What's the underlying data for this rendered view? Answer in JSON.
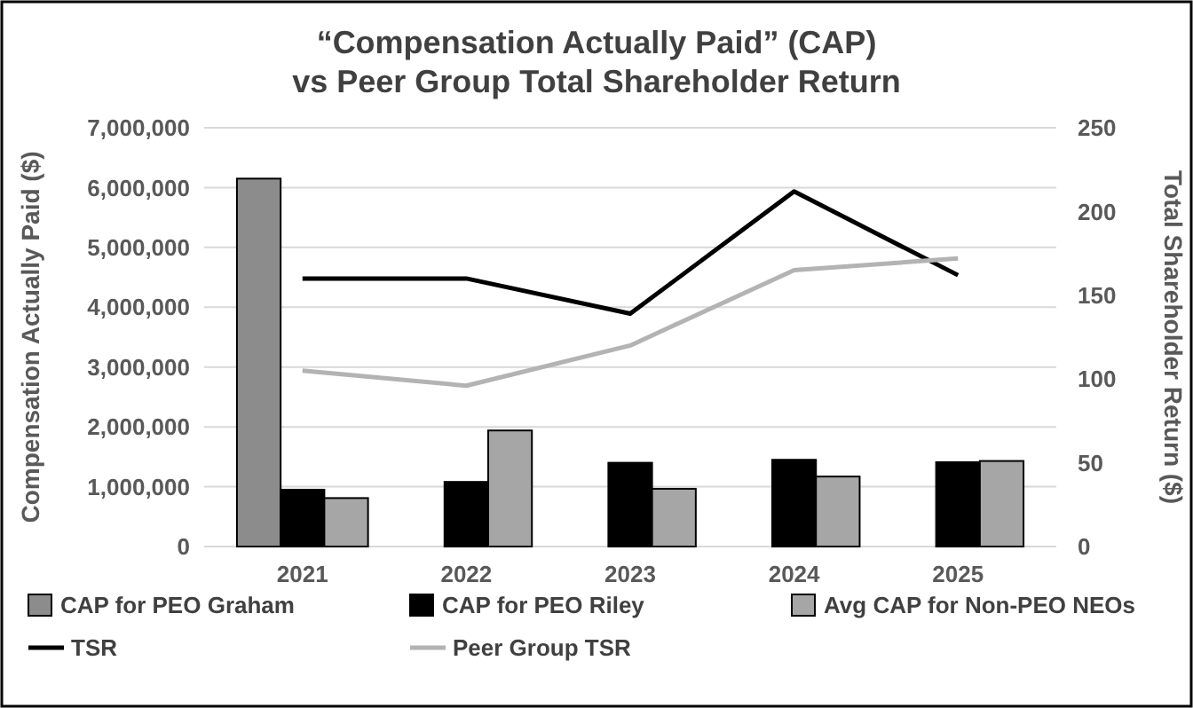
{
  "chart_data": {
    "type": "bar",
    "title": "“Compensation Actually Paid” (CAP)\nvs Peer Group Total Shareholder Return",
    "ylabel": "Compensation Actually Paid ($)",
    "y2label": "Total Shareholder Return ($)",
    "categories": [
      "2021",
      "2022",
      "2023",
      "2024",
      "2025"
    ],
    "series": [
      {
        "name": "CAP for PEO Graham",
        "color": "#8c8c8c",
        "values": [
          6150000,
          null,
          null,
          null,
          null
        ]
      },
      {
        "name": "CAP for PEO Riley",
        "color": "#000000",
        "values": [
          950000,
          1080000,
          1400000,
          1450000,
          1410000
        ]
      },
      {
        "name": "Avg CAP for Non-PEO NEOs",
        "color": "#a6a6a6",
        "values": [
          810000,
          1940000,
          965000,
          1170000,
          1430000
        ]
      },
      {
        "name": "TSR",
        "type": "line",
        "axis": "y2",
        "color": "#000000",
        "values": [
          160,
          160,
          139,
          212,
          162
        ]
      },
      {
        "name": "Peer Group TSR",
        "type": "line",
        "axis": "y2",
        "color": "#b3b3b3",
        "values": [
          105,
          96,
          120,
          165,
          172
        ]
      }
    ],
    "ylim": [
      0,
      7000000
    ],
    "yticks": [
      {
        "value": 0,
        "label": "0"
      },
      {
        "value": 1000000,
        "label": "1,000,000"
      },
      {
        "value": 2000000,
        "label": "2,000,000"
      },
      {
        "value": 3000000,
        "label": "3,000,000"
      },
      {
        "value": 4000000,
        "label": "4,000,000"
      },
      {
        "value": 5000000,
        "label": "5,000,000"
      },
      {
        "value": 6000000,
        "label": "6,000,000"
      },
      {
        "value": 7000000,
        "label": "7,000,000"
      }
    ],
    "y2lim": [
      0,
      250
    ],
    "y2ticks": [
      0,
      50,
      100,
      150,
      200,
      250
    ],
    "grid": "y",
    "legend": "bottom"
  }
}
